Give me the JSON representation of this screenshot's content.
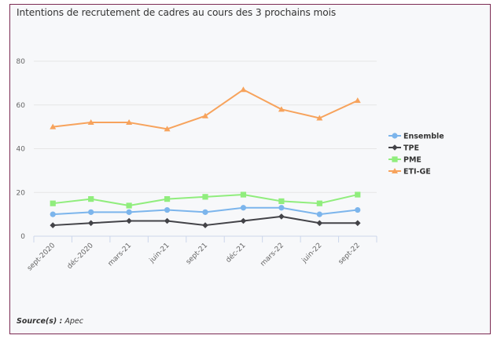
{
  "source": {
    "label": "Source(s) :",
    "value": "Apec"
  },
  "chart_data": {
    "type": "line",
    "title": "Intentions de recrutement de cadres au cours des 3 prochains mois",
    "xlabel": "",
    "ylabel": "",
    "categories": [
      "sept-2020",
      "déc-2020",
      "mars-21",
      "juin-21",
      "sept-21",
      "déc-21",
      "mars-22",
      "juin-22",
      "sept-22"
    ],
    "ylim": [
      0,
      80
    ],
    "yticks": [
      0,
      20,
      40,
      60,
      80
    ],
    "grid": true,
    "legend_position": "right",
    "series": [
      {
        "name": "Ensemble",
        "color": "#7cb5ec",
        "marker": "circle",
        "values": [
          10,
          11,
          11,
          12,
          11,
          13,
          13,
          10,
          12
        ]
      },
      {
        "name": "TPE",
        "color": "#434348",
        "marker": "diamond",
        "values": [
          5,
          6,
          7,
          7,
          5,
          7,
          9,
          6,
          6
        ]
      },
      {
        "name": "PME",
        "color": "#90ed7d",
        "marker": "square",
        "values": [
          15,
          17,
          14,
          17,
          18,
          19,
          16,
          15,
          19
        ]
      },
      {
        "name": "ETI-GE",
        "color": "#f7a35c",
        "marker": "triangle",
        "values": [
          50,
          52,
          52,
          49,
          55,
          67,
          58,
          54,
          62
        ]
      }
    ]
  }
}
